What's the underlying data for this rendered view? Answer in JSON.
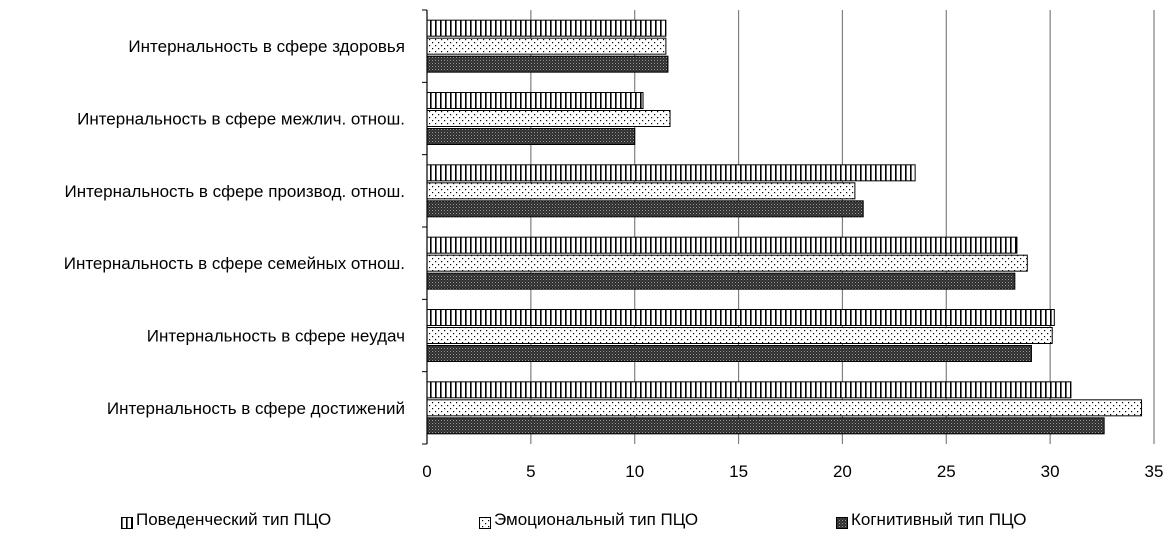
{
  "chart_data": {
    "type": "bar",
    "orientation": "horizontal",
    "categories": [
      "Интернальность в сфере здоровья",
      "Интернальность в сфере межлич. отнош.",
      "Интернальность в сфере производ. отнош.",
      "Интернальность в сфере семейных отнош.",
      "Интернальность в сфере неудач",
      "Интернальность в сфере достижений"
    ],
    "series": [
      {
        "name": "Поведенческий тип ПЦО",
        "pattern": "vertical-stripes",
        "values": [
          11.5,
          10.4,
          23.5,
          28.4,
          30.2,
          31.0
        ]
      },
      {
        "name": "Эмоциональный тип ПЦО",
        "pattern": "dots",
        "values": [
          11.5,
          11.7,
          20.6,
          28.9,
          30.1,
          34.4
        ]
      },
      {
        "name": "Когнитивный тип ПЦО",
        "pattern": "dense-dark",
        "values": [
          11.6,
          10.0,
          21.0,
          28.3,
          29.1,
          32.6
        ]
      }
    ],
    "xlim": [
      0,
      35
    ],
    "xticks": [
      "0",
      "5",
      "10",
      "15",
      "20",
      "25",
      "30",
      "35"
    ],
    "grid": true,
    "legend_position": "bottom",
    "title": "",
    "xlabel": "",
    "ylabel": ""
  },
  "colors": {
    "bar_outline": "#000000",
    "grid": "#808080",
    "dark_fill": "#3a3a3a"
  }
}
